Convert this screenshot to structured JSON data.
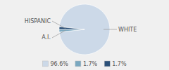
{
  "chart_data": {
    "type": "pie",
    "categories": [
      "WHITE",
      "A.I.",
      "HISPANIC"
    ],
    "values": [
      96.6,
      1.7,
      1.7
    ],
    "value_labels": [
      "96.6%",
      "1.7%",
      "1.7%"
    ],
    "colors": [
      "#ccd9e8",
      "#7aa8c0",
      "#2b5078"
    ],
    "legend": "bottom"
  }
}
